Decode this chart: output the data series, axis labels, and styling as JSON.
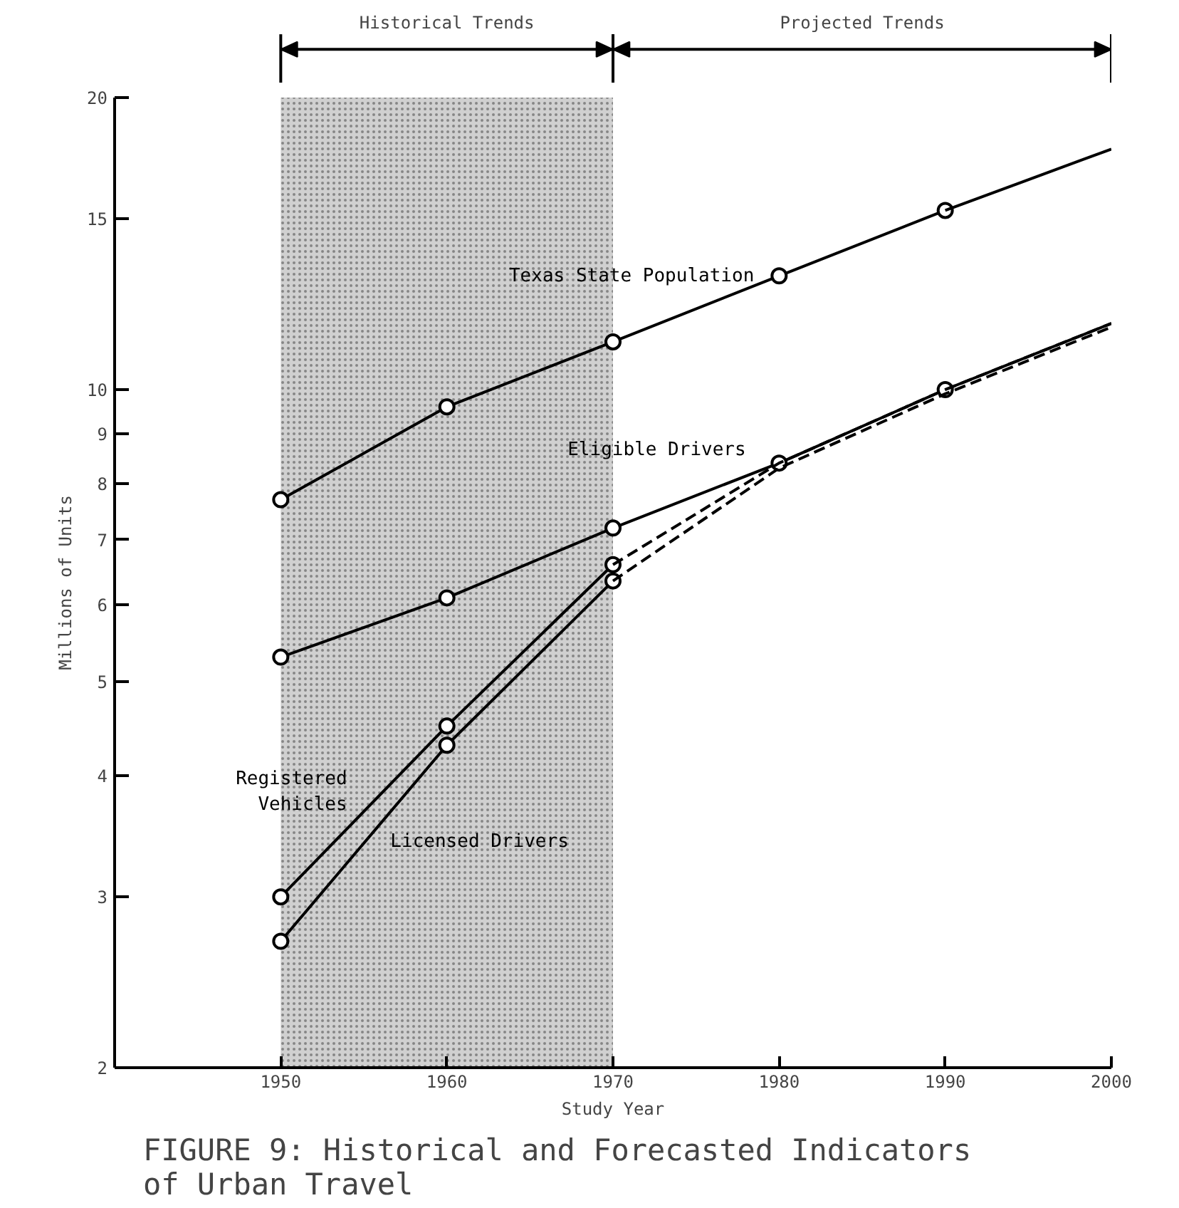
{
  "chart_data": {
    "type": "line",
    "title": "FIGURE 9:  Historical and Forecasted Indicators\nof Urban Travel",
    "xlabel": "Study Year",
    "ylabel": "Millions of Units",
    "log": "y",
    "xlim": [
      1940,
      2000
    ],
    "xticks": [
      1950,
      1960,
      1970,
      1980,
      1990,
      2000
    ],
    "ylim": [
      2,
      20
    ],
    "yticks": [
      2,
      3,
      4,
      5,
      6,
      7,
      8,
      9,
      10,
      15,
      20
    ],
    "grid": false,
    "bands": [
      {
        "axis": "x",
        "from": 1950,
        "to": 1970,
        "color": "#d0d0d0"
      }
    ],
    "annotations": [
      "Historical Trends",
      "Projected Trends"
    ],
    "series": [
      {
        "name": "Texas State Population",
        "color": "#000000",
        "x": [
          1950,
          1960,
          1970,
          1980,
          1990
        ],
        "values": [
          7.7,
          9.6,
          11.2,
          13.1,
          15.3
        ],
        "marker": "circle",
        "line_style": "solid"
      },
      {
        "color": "#000000",
        "x": [
          1990,
          2000
        ],
        "values": [
          15.3,
          17.7
        ],
        "marker": "none",
        "line_style": "solid"
      },
      {
        "name": "Eligible Drivers",
        "color": "#000000",
        "x": [
          1950,
          1960,
          1970,
          1980,
          1990
        ],
        "values": [
          5.3,
          6.1,
          7.2,
          8.4,
          10
        ],
        "marker": "circle",
        "line_style": "solid"
      },
      {
        "color": "#000000",
        "x": [
          1990,
          2000
        ],
        "values": [
          10,
          11.7
        ],
        "marker": "none",
        "line_style": "solid"
      },
      {
        "name": "Registered\nVehicles",
        "color": "#000000",
        "x": [
          1950,
          1960,
          1970
        ],
        "values": [
          3.0,
          4.5,
          6.6
        ],
        "marker": "circle",
        "line_style": "solid"
      },
      {
        "color": "#000000",
        "x": [
          1970,
          1980,
          1990,
          2000
        ],
        "values": [
          6.6,
          8.4,
          10,
          11.7
        ],
        "marker": "none",
        "line_style": "dashed"
      },
      {
        "name": "Licensed Drivers",
        "color": "#000000",
        "x": [
          1950,
          1960,
          1970
        ],
        "values": [
          2.7,
          4.3,
          6.35
        ],
        "marker": "circle",
        "line_style": "solid"
      },
      {
        "color": "#000000",
        "x": [
          1970,
          1980,
          1990,
          2000
        ],
        "values": [
          6.35,
          8.3,
          9.9,
          11.6
        ],
        "marker": "none",
        "line_style": "dashed"
      }
    ]
  }
}
